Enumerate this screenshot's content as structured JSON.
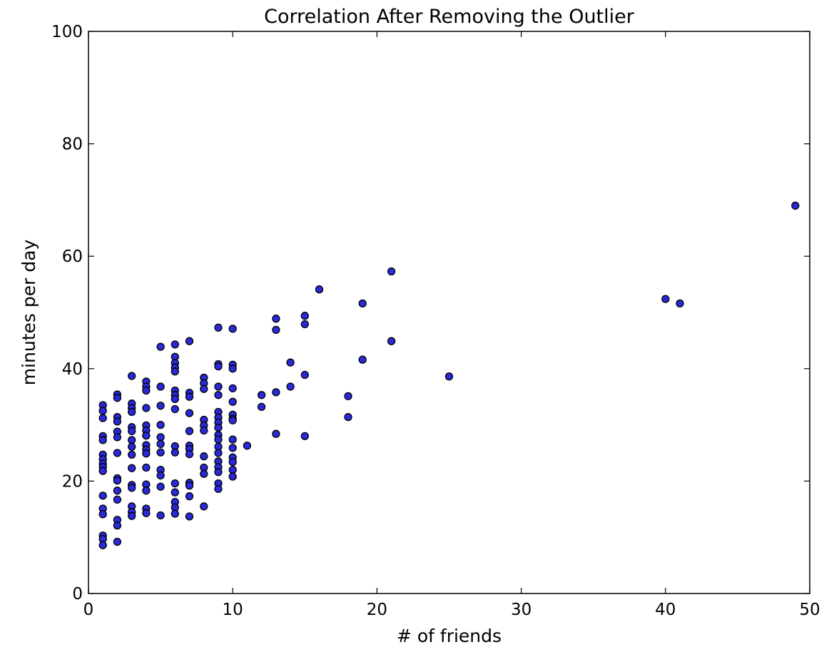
{
  "chart_data": {
    "type": "scatter",
    "title": "Correlation After Removing the Outlier",
    "xlabel": "# of friends",
    "ylabel": "minutes per day",
    "xlim": [
      0,
      50
    ],
    "ylim": [
      0,
      100
    ],
    "xticks": [
      0,
      10,
      20,
      30,
      40,
      50
    ],
    "yticks": [
      0,
      20,
      40,
      60,
      80,
      100
    ],
    "grid": false,
    "legend": null,
    "marker_color": "#2929d9",
    "marker_edge": "#000000",
    "points": [
      [
        1,
        33.5
      ],
      [
        1,
        32.5
      ],
      [
        1,
        31.2
      ],
      [
        1,
        28
      ],
      [
        1,
        27.3
      ],
      [
        1,
        24.7
      ],
      [
        1,
        23.9
      ],
      [
        1,
        23.1
      ],
      [
        1,
        22.5
      ],
      [
        1,
        21.8
      ],
      [
        1,
        17.4
      ],
      [
        1,
        15.1
      ],
      [
        1,
        14.1
      ],
      [
        1,
        10.3
      ],
      [
        1,
        9.7
      ],
      [
        1,
        8.6
      ],
      [
        2,
        35.4
      ],
      [
        2,
        34.8
      ],
      [
        2,
        31.4
      ],
      [
        2,
        30.6
      ],
      [
        2,
        28.8
      ],
      [
        2,
        27.8
      ],
      [
        2,
        25
      ],
      [
        2,
        20.5
      ],
      [
        2,
        20.1
      ],
      [
        2,
        18.3
      ],
      [
        2,
        16.7
      ],
      [
        2,
        13.1
      ],
      [
        2,
        12.1
      ],
      [
        2,
        9.2
      ],
      [
        3,
        38.7
      ],
      [
        3,
        33.8
      ],
      [
        3,
        33
      ],
      [
        3,
        32.3
      ],
      [
        3,
        29.6
      ],
      [
        3,
        28.9
      ],
      [
        3,
        27.3
      ],
      [
        3,
        26.1
      ],
      [
        3,
        24.7
      ],
      [
        3,
        22.3
      ],
      [
        3,
        19.3
      ],
      [
        3,
        18.8
      ],
      [
        3,
        15.5
      ],
      [
        3,
        14.5
      ],
      [
        3,
        13.8
      ],
      [
        4,
        37.7
      ],
      [
        4,
        36.8
      ],
      [
        4,
        36.1
      ],
      [
        4,
        33
      ],
      [
        4,
        29.9
      ],
      [
        4,
        29
      ],
      [
        4,
        28.1
      ],
      [
        4,
        26.4
      ],
      [
        4,
        25.6
      ],
      [
        4,
        24.9
      ],
      [
        4,
        22.4
      ],
      [
        4,
        19.4
      ],
      [
        4,
        18.3
      ],
      [
        4,
        15.1
      ],
      [
        4,
        14.3
      ],
      [
        5,
        43.9
      ],
      [
        5,
        36.8
      ],
      [
        5,
        33.4
      ],
      [
        5,
        30
      ],
      [
        5,
        27.8
      ],
      [
        5,
        26.6
      ],
      [
        5,
        25.1
      ],
      [
        5,
        22
      ],
      [
        5,
        21
      ],
      [
        5,
        19
      ],
      [
        5,
        13.9
      ],
      [
        6,
        44.3
      ],
      [
        6,
        42.1
      ],
      [
        6,
        41
      ],
      [
        6,
        40.2
      ],
      [
        6,
        39.5
      ],
      [
        6,
        36.1
      ],
      [
        6,
        35.3
      ],
      [
        6,
        34.6
      ],
      [
        6,
        32.8
      ],
      [
        6,
        26.2
      ],
      [
        6,
        25.1
      ],
      [
        6,
        19.6
      ],
      [
        6,
        18
      ],
      [
        6,
        16.3
      ],
      [
        6,
        15.3
      ],
      [
        6,
        14.2
      ],
      [
        7,
        44.9
      ],
      [
        7,
        35.7
      ],
      [
        7,
        35
      ],
      [
        7,
        32.1
      ],
      [
        7,
        28.9
      ],
      [
        7,
        26.3
      ],
      [
        7,
        25.7
      ],
      [
        7,
        24.8
      ],
      [
        7,
        19.7
      ],
      [
        7,
        19.2
      ],
      [
        7,
        17.3
      ],
      [
        7,
        13.7
      ],
      [
        8,
        38.4
      ],
      [
        8,
        37.4
      ],
      [
        8,
        36.4
      ],
      [
        8,
        30.9
      ],
      [
        8,
        29.9
      ],
      [
        8,
        29
      ],
      [
        8,
        24.4
      ],
      [
        8,
        22.4
      ],
      [
        8,
        21.3
      ],
      [
        8,
        15.5
      ],
      [
        9,
        47.3
      ],
      [
        9,
        40.8
      ],
      [
        9,
        40.4
      ],
      [
        9,
        36.8
      ],
      [
        9,
        35.3
      ],
      [
        9,
        32.3
      ],
      [
        9,
        31.3
      ],
      [
        9,
        30.4
      ],
      [
        9,
        29.5
      ],
      [
        9,
        28.2
      ],
      [
        9,
        27.4
      ],
      [
        9,
        26.1
      ],
      [
        9,
        25
      ],
      [
        9,
        23.5
      ],
      [
        9,
        22.5
      ],
      [
        9,
        21.6
      ],
      [
        9,
        19.6
      ],
      [
        9,
        18.6
      ],
      [
        10,
        47.1
      ],
      [
        10,
        40.7
      ],
      [
        10,
        40
      ],
      [
        10,
        36.5
      ],
      [
        10,
        34.1
      ],
      [
        10,
        31.8
      ],
      [
        10,
        31.1
      ],
      [
        10,
        30.8
      ],
      [
        10,
        27.4
      ],
      [
        10,
        25.9
      ],
      [
        10,
        24.2
      ],
      [
        10,
        23.4
      ],
      [
        10,
        22
      ],
      [
        10,
        20.8
      ],
      [
        11,
        26.3
      ],
      [
        12,
        35.3
      ],
      [
        12,
        33.2
      ],
      [
        13,
        48.9
      ],
      [
        13,
        46.9
      ],
      [
        13,
        35.8
      ],
      [
        13,
        28.4
      ],
      [
        14,
        41.1
      ],
      [
        14,
        36.8
      ],
      [
        15,
        49.4
      ],
      [
        15,
        47.9
      ],
      [
        15,
        38.9
      ],
      [
        15,
        28
      ],
      [
        16,
        54.1
      ],
      [
        18,
        35.1
      ],
      [
        18,
        31.4
      ],
      [
        19,
        51.6
      ],
      [
        19,
        41.6
      ],
      [
        21,
        57.3
      ],
      [
        21,
        44.9
      ],
      [
        25,
        38.6
      ],
      [
        40,
        52.4
      ],
      [
        41,
        51.6
      ],
      [
        49,
        69
      ]
    ]
  }
}
